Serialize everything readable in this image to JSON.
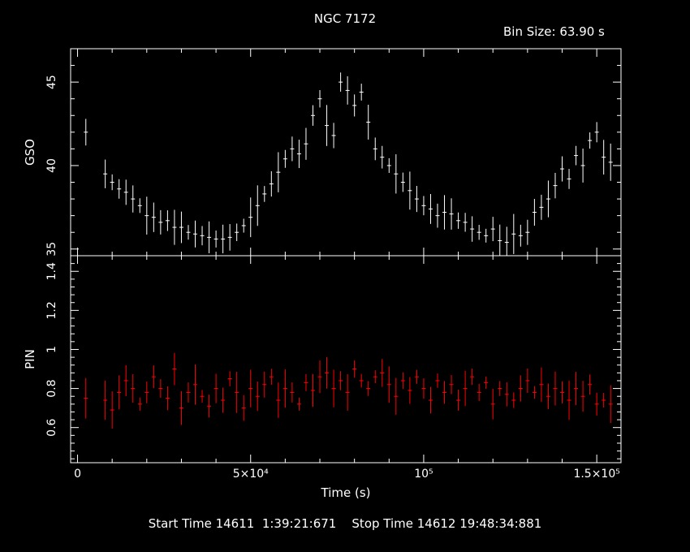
{
  "title": "NGC 7172",
  "bin_size_label": "Bin Size: 63.90 s",
  "xlabel": "Time (s)",
  "footer": "Start Time 14611  1:39:21:671    Stop Time 14612 19:48:34:881",
  "colors": {
    "background": "#000000",
    "axes": "#ffffff",
    "gso": "#ffffff",
    "pin": "#ff0000"
  },
  "chart_data": [
    {
      "type": "scatter",
      "panel": "top",
      "ylabel": "GSO",
      "xlim": [
        -2000,
        157000
      ],
      "ylim": [
        34.6,
        47.0
      ],
      "x_ticks": [
        0,
        50000,
        100000,
        150000
      ],
      "y_ticks": [
        35,
        40,
        45
      ],
      "y_tick_labels": [
        "35",
        "40",
        "45"
      ],
      "error_bars": true,
      "series": [
        {
          "color": "#ffffff",
          "x": [
            2400,
            8000,
            10000,
            12000,
            14000,
            16000,
            18000,
            20000,
            22000,
            24000,
            26000,
            28000,
            30000,
            32000,
            34000,
            36000,
            38000,
            40000,
            42000,
            44000,
            46000,
            48000,
            50000,
            52000,
            54000,
            56000,
            58000,
            60000,
            62000,
            64000,
            66000,
            68000,
            70000,
            72000,
            74000,
            76000,
            78000,
            80000,
            82000,
            84000,
            86000,
            88000,
            90000,
            92000,
            94000,
            96000,
            98000,
            100000,
            102000,
            104000,
            106000,
            108000,
            110000,
            112000,
            114000,
            116000,
            118000,
            120000,
            122000,
            124000,
            126000,
            128000,
            130000,
            132000,
            134000,
            136000,
            138000,
            140000,
            142000,
            144000,
            146000,
            148000,
            150000,
            152000,
            154000
          ],
          "y": [
            42.0,
            39.5,
            39.0,
            38.6,
            38.4,
            38.0,
            37.6,
            37.0,
            36.9,
            36.6,
            36.7,
            36.3,
            36.3,
            36.0,
            35.9,
            35.8,
            35.7,
            35.6,
            35.6,
            35.7,
            36.0,
            36.4,
            36.9,
            37.6,
            38.3,
            38.9,
            39.6,
            40.4,
            41.0,
            40.7,
            41.3,
            43.0,
            44.0,
            42.4,
            41.8,
            45.0,
            44.5,
            43.6,
            44.4,
            42.6,
            41.0,
            40.5,
            40.0,
            39.5,
            39.0,
            38.5,
            38.0,
            37.6,
            37.4,
            37.0,
            37.2,
            37.1,
            36.7,
            36.6,
            36.2,
            36.0,
            35.8,
            36.2,
            35.5,
            35.4,
            35.9,
            35.8,
            36.0,
            37.2,
            37.5,
            38.0,
            38.8,
            39.8,
            39.2,
            40.6,
            40.0,
            41.5,
            42.0,
            40.5,
            40.2
          ]
        }
      ]
    },
    {
      "type": "scatter",
      "panel": "bottom",
      "ylabel": "PIN",
      "xlim": [
        -2000,
        157000
      ],
      "ylim": [
        0.42,
        1.48
      ],
      "x_ticks": [
        0,
        50000,
        100000,
        150000
      ],
      "x_tick_labels": [
        "0",
        "5×10⁴",
        "10⁵",
        "1.5×10⁵"
      ],
      "y_ticks": [
        0.6,
        0.8,
        1.0,
        1.2,
        1.4
      ],
      "y_tick_labels": [
        "0.6",
        "0.8",
        "1",
        "1.2",
        "1.4"
      ],
      "error_bars": true,
      "series": [
        {
          "color": "#ff0000",
          "x": [
            2400,
            8000,
            10000,
            12000,
            14000,
            16000,
            18000,
            20000,
            22000,
            24000,
            26000,
            28000,
            30000,
            32000,
            34000,
            36000,
            38000,
            40000,
            42000,
            44000,
            46000,
            48000,
            50000,
            52000,
            54000,
            56000,
            58000,
            60000,
            62000,
            64000,
            66000,
            68000,
            70000,
            72000,
            74000,
            76000,
            78000,
            80000,
            82000,
            84000,
            86000,
            88000,
            90000,
            92000,
            94000,
            96000,
            98000,
            100000,
            102000,
            104000,
            106000,
            108000,
            110000,
            112000,
            114000,
            116000,
            118000,
            120000,
            122000,
            124000,
            126000,
            128000,
            130000,
            132000,
            134000,
            136000,
            138000,
            140000,
            142000,
            144000,
            146000,
            148000,
            150000,
            152000,
            154000
          ],
          "y": [
            0.75,
            0.74,
            0.69,
            0.78,
            0.84,
            0.8,
            0.72,
            0.78,
            0.86,
            0.8,
            0.75,
            0.9,
            0.7,
            0.78,
            0.82,
            0.76,
            0.71,
            0.8,
            0.74,
            0.85,
            0.78,
            0.7,
            0.8,
            0.76,
            0.82,
            0.86,
            0.74,
            0.8,
            0.78,
            0.72,
            0.83,
            0.79,
            0.86,
            0.88,
            0.8,
            0.84,
            0.78,
            0.9,
            0.84,
            0.8,
            0.86,
            0.88,
            0.82,
            0.76,
            0.84,
            0.79,
            0.86,
            0.8,
            0.74,
            0.84,
            0.78,
            0.82,
            0.74,
            0.8,
            0.86,
            0.78,
            0.83,
            0.72,
            0.8,
            0.77,
            0.74,
            0.8,
            0.84,
            0.78,
            0.82,
            0.76,
            0.8,
            0.78,
            0.74,
            0.8,
            0.76,
            0.82,
            0.72,
            0.74,
            0.72
          ]
        }
      ]
    }
  ]
}
